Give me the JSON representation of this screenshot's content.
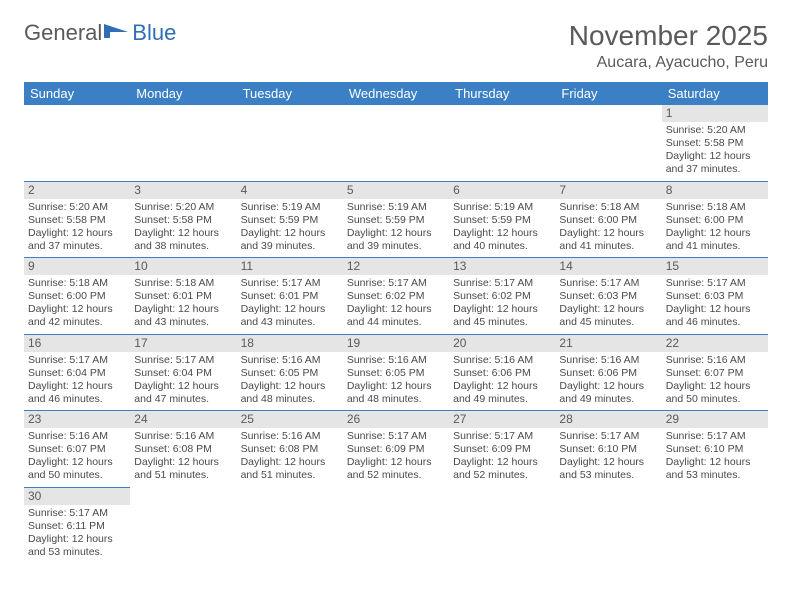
{
  "logo": {
    "text1": "General",
    "text2": "Blue",
    "text1_color": "#6a6a6a",
    "text2_color": "#2f6fb5",
    "icon_color": "#2f6fb5"
  },
  "header": {
    "month": "November 2025",
    "location": "Aucara, Ayacucho, Peru"
  },
  "colors": {
    "header_bg": "#3b7fc4",
    "header_text": "#ffffff",
    "daynum_bg": "#e5e5e5",
    "text": "#4a4a4a",
    "border": "#3b7fc4"
  },
  "weekdays": [
    "Sunday",
    "Monday",
    "Tuesday",
    "Wednesday",
    "Thursday",
    "Friday",
    "Saturday"
  ],
  "weeks": [
    [
      null,
      null,
      null,
      null,
      null,
      null,
      {
        "n": "1",
        "sunrise": "5:20 AM",
        "sunset": "5:58 PM",
        "daylight": "12 hours and 37 minutes."
      }
    ],
    [
      {
        "n": "2",
        "sunrise": "5:20 AM",
        "sunset": "5:58 PM",
        "daylight": "12 hours and 37 minutes."
      },
      {
        "n": "3",
        "sunrise": "5:20 AM",
        "sunset": "5:58 PM",
        "daylight": "12 hours and 38 minutes."
      },
      {
        "n": "4",
        "sunrise": "5:19 AM",
        "sunset": "5:59 PM",
        "daylight": "12 hours and 39 minutes."
      },
      {
        "n": "5",
        "sunrise": "5:19 AM",
        "sunset": "5:59 PM",
        "daylight": "12 hours and 39 minutes."
      },
      {
        "n": "6",
        "sunrise": "5:19 AM",
        "sunset": "5:59 PM",
        "daylight": "12 hours and 40 minutes."
      },
      {
        "n": "7",
        "sunrise": "5:18 AM",
        "sunset": "6:00 PM",
        "daylight": "12 hours and 41 minutes."
      },
      {
        "n": "8",
        "sunrise": "5:18 AM",
        "sunset": "6:00 PM",
        "daylight": "12 hours and 41 minutes."
      }
    ],
    [
      {
        "n": "9",
        "sunrise": "5:18 AM",
        "sunset": "6:00 PM",
        "daylight": "12 hours and 42 minutes."
      },
      {
        "n": "10",
        "sunrise": "5:18 AM",
        "sunset": "6:01 PM",
        "daylight": "12 hours and 43 minutes."
      },
      {
        "n": "11",
        "sunrise": "5:17 AM",
        "sunset": "6:01 PM",
        "daylight": "12 hours and 43 minutes."
      },
      {
        "n": "12",
        "sunrise": "5:17 AM",
        "sunset": "6:02 PM",
        "daylight": "12 hours and 44 minutes."
      },
      {
        "n": "13",
        "sunrise": "5:17 AM",
        "sunset": "6:02 PM",
        "daylight": "12 hours and 45 minutes."
      },
      {
        "n": "14",
        "sunrise": "5:17 AM",
        "sunset": "6:03 PM",
        "daylight": "12 hours and 45 minutes."
      },
      {
        "n": "15",
        "sunrise": "5:17 AM",
        "sunset": "6:03 PM",
        "daylight": "12 hours and 46 minutes."
      }
    ],
    [
      {
        "n": "16",
        "sunrise": "5:17 AM",
        "sunset": "6:04 PM",
        "daylight": "12 hours and 46 minutes."
      },
      {
        "n": "17",
        "sunrise": "5:17 AM",
        "sunset": "6:04 PM",
        "daylight": "12 hours and 47 minutes."
      },
      {
        "n": "18",
        "sunrise": "5:16 AM",
        "sunset": "6:05 PM",
        "daylight": "12 hours and 48 minutes."
      },
      {
        "n": "19",
        "sunrise": "5:16 AM",
        "sunset": "6:05 PM",
        "daylight": "12 hours and 48 minutes."
      },
      {
        "n": "20",
        "sunrise": "5:16 AM",
        "sunset": "6:06 PM",
        "daylight": "12 hours and 49 minutes."
      },
      {
        "n": "21",
        "sunrise": "5:16 AM",
        "sunset": "6:06 PM",
        "daylight": "12 hours and 49 minutes."
      },
      {
        "n": "22",
        "sunrise": "5:16 AM",
        "sunset": "6:07 PM",
        "daylight": "12 hours and 50 minutes."
      }
    ],
    [
      {
        "n": "23",
        "sunrise": "5:16 AM",
        "sunset": "6:07 PM",
        "daylight": "12 hours and 50 minutes."
      },
      {
        "n": "24",
        "sunrise": "5:16 AM",
        "sunset": "6:08 PM",
        "daylight": "12 hours and 51 minutes."
      },
      {
        "n": "25",
        "sunrise": "5:16 AM",
        "sunset": "6:08 PM",
        "daylight": "12 hours and 51 minutes."
      },
      {
        "n": "26",
        "sunrise": "5:17 AM",
        "sunset": "6:09 PM",
        "daylight": "12 hours and 52 minutes."
      },
      {
        "n": "27",
        "sunrise": "5:17 AM",
        "sunset": "6:09 PM",
        "daylight": "12 hours and 52 minutes."
      },
      {
        "n": "28",
        "sunrise": "5:17 AM",
        "sunset": "6:10 PM",
        "daylight": "12 hours and 53 minutes."
      },
      {
        "n": "29",
        "sunrise": "5:17 AM",
        "sunset": "6:10 PM",
        "daylight": "12 hours and 53 minutes."
      }
    ],
    [
      {
        "n": "30",
        "sunrise": "5:17 AM",
        "sunset": "6:11 PM",
        "daylight": "12 hours and 53 minutes."
      },
      null,
      null,
      null,
      null,
      null,
      null
    ]
  ],
  "labels": {
    "sunrise": "Sunrise:",
    "sunset": "Sunset:",
    "daylight": "Daylight:"
  }
}
